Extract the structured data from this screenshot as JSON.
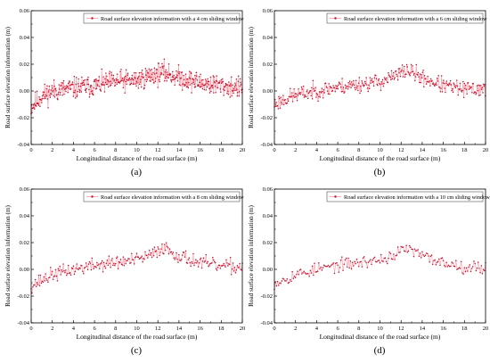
{
  "figure": {
    "colors": {
      "line": "#ff9aa6",
      "marker": "#c4102c",
      "axis": "#000000",
      "background": "#ffffff"
    }
  },
  "chart_data": [
    {
      "type": "line",
      "panel_label": "(a)",
      "xlabel": "Longitudinal distance of the road surface (m)",
      "ylabel": "Road surface elevation information (m)",
      "xlim": [
        0,
        20
      ],
      "ylim": [
        -0.04,
        0.06
      ],
      "xticks": [
        0,
        2,
        4,
        6,
        8,
        10,
        12,
        14,
        16,
        18,
        20
      ],
      "yticks": [
        -0.04,
        -0.02,
        0.0,
        0.02,
        0.04,
        0.06
      ],
      "ytick_labels": [
        "-0.04",
        "-0.02",
        "0.00",
        "0.02",
        "0.04",
        "0.06"
      ],
      "grid": false,
      "legend_position": "top-right",
      "series": [
        {
          "name": "Road surface elevation information with a 4 cm sliding window",
          "x_step": 0.04,
          "trend": [
            [
              0,
              -0.012
            ],
            [
              1,
              -0.004
            ],
            [
              2,
              0.0
            ],
            [
              4,
              0.002
            ],
            [
              6,
              0.004
            ],
            [
              8,
              0.007
            ],
            [
              10,
              0.008
            ],
            [
              11.5,
              0.012
            ],
            [
              12.5,
              0.014
            ],
            [
              14,
              0.01
            ],
            [
              16,
              0.006
            ],
            [
              18,
              0.004
            ],
            [
              20,
              0.002
            ]
          ],
          "noise_amplitude": 0.012,
          "seed": 11
        }
      ]
    },
    {
      "type": "line",
      "panel_label": "(b)",
      "xlabel": "Longitudinal distance of the road surface (m)",
      "ylabel": "Road surface elevation information (m)",
      "xlim": [
        0,
        20
      ],
      "ylim": [
        -0.04,
        0.06
      ],
      "xticks": [
        0,
        2,
        4,
        6,
        8,
        10,
        12,
        14,
        16,
        18,
        20
      ],
      "yticks": [
        -0.04,
        -0.02,
        0.0,
        0.02,
        0.04,
        0.06
      ],
      "ytick_labels": [
        "-0.04",
        "-0.02",
        "0.00",
        "0.02",
        "0.04",
        "0.06"
      ],
      "grid": false,
      "legend_position": "top-right",
      "series": [
        {
          "name": "Road surface elevation information with a 6 cm sliding window",
          "x_step": 0.06,
          "trend": [
            [
              0,
              -0.01
            ],
            [
              1,
              -0.006
            ],
            [
              2,
              -0.003
            ],
            [
              4,
              0.0
            ],
            [
              6,
              0.003
            ],
            [
              8,
              0.005
            ],
            [
              10,
              0.007
            ],
            [
              11.5,
              0.011
            ],
            [
              12.5,
              0.016
            ],
            [
              14,
              0.01
            ],
            [
              16,
              0.004
            ],
            [
              18,
              0.001
            ],
            [
              20,
              0.002
            ]
          ],
          "noise_amplitude": 0.009,
          "seed": 23
        }
      ]
    },
    {
      "type": "line",
      "panel_label": "(c)",
      "xlabel": "Longitudinal distance of the road surface (m)",
      "ylabel": "Road surface elevation information (m)",
      "xlim": [
        0,
        20
      ],
      "ylim": [
        -0.04,
        0.06
      ],
      "xticks": [
        0,
        2,
        4,
        6,
        8,
        10,
        12,
        14,
        16,
        18,
        20
      ],
      "yticks": [
        -0.04,
        -0.02,
        0.0,
        0.02,
        0.04,
        0.06
      ],
      "ytick_labels": [
        "-0.04",
        "-0.02",
        "0.00",
        "0.02",
        "0.04",
        "0.06"
      ],
      "grid": false,
      "legend_position": "top-right",
      "series": [
        {
          "name": "Road surface elevation information with a 8 cm sliding window",
          "x_step": 0.08,
          "trend": [
            [
              0,
              -0.012
            ],
            [
              1,
              -0.008
            ],
            [
              2,
              -0.004
            ],
            [
              4,
              0.0
            ],
            [
              6,
              0.003
            ],
            [
              8,
              0.005
            ],
            [
              10,
              0.007
            ],
            [
              11.5,
              0.011
            ],
            [
              12.5,
              0.017
            ],
            [
              14,
              0.01
            ],
            [
              16,
              0.005
            ],
            [
              18,
              0.002
            ],
            [
              20,
              0.002
            ]
          ],
          "noise_amplitude": 0.008,
          "seed": 37
        }
      ]
    },
    {
      "type": "line",
      "panel_label": "(d)",
      "xlabel": "Longitudinal distance of the road surface (m)",
      "ylabel": "Road surface elevation information (m)",
      "xlim": [
        0,
        20
      ],
      "ylim": [
        -0.04,
        0.06
      ],
      "xticks": [
        0,
        2,
        4,
        6,
        8,
        10,
        12,
        14,
        16,
        18,
        20
      ],
      "yticks": [
        -0.04,
        -0.02,
        0.0,
        0.02,
        0.04,
        0.06
      ],
      "ytick_labels": [
        "-0.04",
        "-0.02",
        "0.00",
        "0.02",
        "0.04",
        "0.06"
      ],
      "grid": false,
      "legend_position": "top-right",
      "series": [
        {
          "name": "Road surface elevation information with a 10 cm sliding window",
          "x_step": 0.1,
          "trend": [
            [
              0,
              -0.01
            ],
            [
              1,
              -0.007
            ],
            [
              2,
              -0.004
            ],
            [
              4,
              0.0
            ],
            [
              6,
              0.003
            ],
            [
              8,
              0.005
            ],
            [
              10,
              0.007
            ],
            [
              11.5,
              0.011
            ],
            [
              12.5,
              0.016
            ],
            [
              14,
              0.01
            ],
            [
              16,
              0.005
            ],
            [
              18,
              0.002
            ],
            [
              20,
              0.001
            ]
          ],
          "noise_amplitude": 0.007,
          "seed": 53
        }
      ]
    }
  ]
}
